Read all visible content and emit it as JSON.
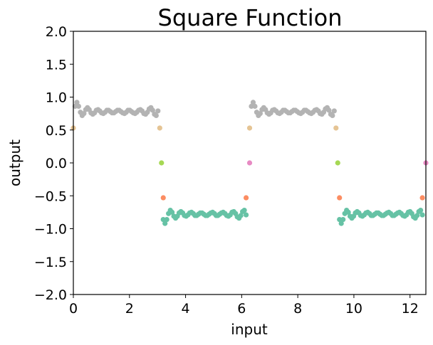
{
  "chart_data": {
    "type": "scatter",
    "title": "Square Function",
    "xlabel": "input",
    "ylabel": "output",
    "xlim": [
      0,
      12.566
    ],
    "ylim": [
      -2.0,
      2.0
    ],
    "xticks": [
      0,
      2,
      4,
      6,
      8,
      10,
      12
    ],
    "xtick_labels": [
      "0",
      "2",
      "4",
      "6",
      "8",
      "10",
      "12"
    ],
    "yticks": [
      -2.0,
      -1.5,
      -1.0,
      -0.5,
      0.0,
      0.5,
      1.0,
      1.5,
      2.0
    ],
    "ytick_labels": [
      "−2.0",
      "−1.5",
      "−1.0",
      "−0.5",
      "0.0",
      "0.5",
      "1.0",
      "1.5",
      "2.0"
    ],
    "grid": false,
    "series": [
      {
        "color": "#b3b3b3",
        "x": [
          0.063,
          0.126,
          0.188,
          0.251,
          0.314,
          0.377,
          0.44,
          0.503,
          0.565,
          0.628,
          0.691,
          0.754,
          0.817,
          0.88,
          0.942,
          1.005,
          1.068,
          1.131,
          1.194,
          1.257,
          1.319,
          1.382,
          1.445,
          1.508,
          1.571,
          1.634,
          1.696,
          1.759,
          1.822,
          1.885,
          1.948,
          2.011,
          2.073,
          2.136,
          2.199,
          2.262,
          2.325,
          2.388,
          2.45,
          2.513,
          2.576,
          2.639,
          2.702,
          2.765,
          2.827,
          2.89,
          2.953,
          3.016,
          6.346,
          6.409,
          6.472,
          6.535,
          6.597,
          6.66,
          6.723,
          6.786,
          6.849,
          6.912,
          6.974,
          7.037,
          7.1,
          7.163,
          7.226,
          7.289,
          7.351,
          7.414,
          7.477,
          7.54,
          7.603,
          7.666,
          7.728,
          7.791,
          7.854,
          7.917,
          7.98,
          8.043,
          8.105,
          8.168,
          8.231,
          8.294,
          8.357,
          8.42,
          8.482,
          8.545,
          8.608,
          8.671,
          8.734,
          8.797,
          8.859,
          8.922,
          8.985,
          9.048,
          9.111,
          9.174,
          9.236,
          9.299
        ],
        "y": [
          0.86,
          0.92,
          0.86,
          0.77,
          0.72,
          0.75,
          0.81,
          0.84,
          0.81,
          0.76,
          0.74,
          0.76,
          0.8,
          0.81,
          0.79,
          0.76,
          0.75,
          0.77,
          0.8,
          0.8,
          0.78,
          0.76,
          0.76,
          0.78,
          0.8,
          0.8,
          0.78,
          0.76,
          0.75,
          0.77,
          0.8,
          0.8,
          0.78,
          0.76,
          0.75,
          0.77,
          0.8,
          0.81,
          0.79,
          0.75,
          0.74,
          0.77,
          0.82,
          0.84,
          0.8,
          0.74,
          0.72,
          0.79,
          0.86,
          0.92,
          0.86,
          0.77,
          0.72,
          0.75,
          0.81,
          0.84,
          0.81,
          0.76,
          0.74,
          0.76,
          0.8,
          0.81,
          0.79,
          0.76,
          0.75,
          0.77,
          0.8,
          0.8,
          0.78,
          0.76,
          0.76,
          0.78,
          0.8,
          0.8,
          0.78,
          0.76,
          0.75,
          0.77,
          0.8,
          0.8,
          0.78,
          0.76,
          0.75,
          0.77,
          0.8,
          0.81,
          0.79,
          0.75,
          0.74,
          0.77,
          0.82,
          0.84,
          0.8,
          0.74,
          0.72,
          0.79
        ]
      },
      {
        "color": "#66c2a5",
        "x": [
          3.204,
          3.267,
          3.33,
          3.393,
          3.456,
          3.519,
          3.581,
          3.644,
          3.707,
          3.77,
          3.833,
          3.896,
          3.958,
          4.021,
          4.084,
          4.147,
          4.21,
          4.273,
          4.335,
          4.398,
          4.461,
          4.524,
          4.587,
          4.65,
          4.712,
          4.775,
          4.838,
          4.901,
          4.964,
          5.027,
          5.089,
          5.152,
          5.215,
          5.278,
          5.341,
          5.404,
          5.466,
          5.529,
          5.592,
          5.655,
          5.718,
          5.781,
          5.843,
          5.906,
          5.969,
          6.032,
          6.095,
          6.158,
          9.487,
          9.55,
          9.613,
          9.676,
          9.739,
          9.802,
          9.864,
          9.927,
          9.99,
          10.053,
          10.116,
          10.179,
          10.241,
          10.304,
          10.367,
          10.43,
          10.493,
          10.556,
          10.618,
          10.681,
          10.744,
          10.807,
          10.87,
          10.933,
          10.995,
          11.058,
          11.121,
          11.184,
          11.247,
          11.31,
          11.372,
          11.435,
          11.498,
          11.561,
          11.624,
          11.687,
          11.749,
          11.812,
          11.875,
          11.938,
          12.001,
          12.064,
          12.126,
          12.189,
          12.252,
          12.315,
          12.378,
          12.441
        ],
        "y": [
          -0.86,
          -0.92,
          -0.86,
          -0.77,
          -0.72,
          -0.75,
          -0.81,
          -0.84,
          -0.81,
          -0.76,
          -0.74,
          -0.76,
          -0.8,
          -0.81,
          -0.79,
          -0.76,
          -0.75,
          -0.77,
          -0.8,
          -0.8,
          -0.78,
          -0.76,
          -0.76,
          -0.78,
          -0.8,
          -0.8,
          -0.78,
          -0.76,
          -0.75,
          -0.77,
          -0.8,
          -0.8,
          -0.78,
          -0.76,
          -0.75,
          -0.77,
          -0.8,
          -0.81,
          -0.79,
          -0.75,
          -0.74,
          -0.77,
          -0.82,
          -0.84,
          -0.8,
          -0.74,
          -0.72,
          -0.79,
          -0.86,
          -0.92,
          -0.86,
          -0.77,
          -0.72,
          -0.75,
          -0.81,
          -0.84,
          -0.81,
          -0.76,
          -0.74,
          -0.76,
          -0.8,
          -0.81,
          -0.79,
          -0.76,
          -0.75,
          -0.77,
          -0.8,
          -0.8,
          -0.78,
          -0.76,
          -0.76,
          -0.78,
          -0.8,
          -0.8,
          -0.78,
          -0.76,
          -0.75,
          -0.77,
          -0.8,
          -0.8,
          -0.78,
          -0.76,
          -0.75,
          -0.77,
          -0.8,
          -0.81,
          -0.79,
          -0.75,
          -0.74,
          -0.77,
          -0.82,
          -0.84,
          -0.8,
          -0.74,
          -0.72,
          -0.79
        ]
      },
      {
        "color": "#e5c494",
        "x": [
          0.0,
          3.08,
          6.283,
          9.362
        ],
        "y": [
          0.53,
          0.53,
          0.53,
          0.53
        ]
      },
      {
        "color": "#fc8d62",
        "x": [
          3.205,
          6.158,
          9.487,
          12.441
        ],
        "y": [
          -0.53,
          -0.53,
          -0.53,
          -0.53
        ]
      },
      {
        "color": "#a6d854",
        "x": [
          3.142,
          9.425
        ],
        "y": [
          0.0,
          0.0
        ]
      },
      {
        "color": "#e78ac3",
        "x": [
          6.283,
          12.566
        ],
        "y": [
          0.0,
          0.0
        ]
      }
    ]
  }
}
